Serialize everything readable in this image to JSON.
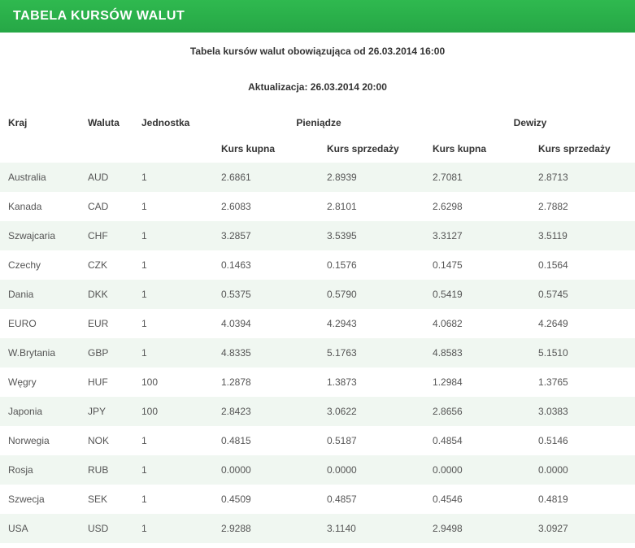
{
  "header": {
    "title": "TABELA KURSÓW WALUT"
  },
  "subtitle": "Tabela kursów walut obowiązująca od 26.03.2014 16:00",
  "update_line": "Aktualizacja: 26.03.2014 20:00",
  "colors": {
    "header_gradient_top": "#2fb94f",
    "header_gradient_bottom": "#26a746",
    "header_text": "#ffffff",
    "row_odd_bg": "#f0f7f1",
    "row_even_bg": "#ffffff",
    "text_primary": "#333333",
    "text_cell": "#555555"
  },
  "table": {
    "columns": {
      "kraj": "Kraj",
      "waluta": "Waluta",
      "jednostka": "Jednostka",
      "pieniadze": "Pieniądze",
      "dewizy": "Dewizy",
      "kurs_kupna": "Kurs kupna",
      "kurs_sprzedazy": "Kurs sprzedaży"
    },
    "rows": [
      {
        "kraj": "Australia",
        "waluta": "AUD",
        "jednostka": "1",
        "p_kupna": "2.6861",
        "p_sprz": "2.8939",
        "d_kupna": "2.7081",
        "d_sprz": "2.8713"
      },
      {
        "kraj": "Kanada",
        "waluta": "CAD",
        "jednostka": "1",
        "p_kupna": "2.6083",
        "p_sprz": "2.8101",
        "d_kupna": "2.6298",
        "d_sprz": "2.7882"
      },
      {
        "kraj": "Szwajcaria",
        "waluta": "CHF",
        "jednostka": "1",
        "p_kupna": "3.2857",
        "p_sprz": "3.5395",
        "d_kupna": "3.3127",
        "d_sprz": "3.5119"
      },
      {
        "kraj": "Czechy",
        "waluta": "CZK",
        "jednostka": "1",
        "p_kupna": "0.1463",
        "p_sprz": "0.1576",
        "d_kupna": "0.1475",
        "d_sprz": "0.1564"
      },
      {
        "kraj": "Dania",
        "waluta": "DKK",
        "jednostka": "1",
        "p_kupna": "0.5375",
        "p_sprz": "0.5790",
        "d_kupna": "0.5419",
        "d_sprz": "0.5745"
      },
      {
        "kraj": "EURO",
        "waluta": "EUR",
        "jednostka": "1",
        "p_kupna": "4.0394",
        "p_sprz": "4.2943",
        "d_kupna": "4.0682",
        "d_sprz": "4.2649"
      },
      {
        "kraj": "W.Brytania",
        "waluta": "GBP",
        "jednostka": "1",
        "p_kupna": "4.8335",
        "p_sprz": "5.1763",
        "d_kupna": "4.8583",
        "d_sprz": "5.1510"
      },
      {
        "kraj": "Węgry",
        "waluta": "HUF",
        "jednostka": "100",
        "p_kupna": "1.2878",
        "p_sprz": "1.3873",
        "d_kupna": "1.2984",
        "d_sprz": "1.3765"
      },
      {
        "kraj": "Japonia",
        "waluta": "JPY",
        "jednostka": "100",
        "p_kupna": "2.8423",
        "p_sprz": "3.0622",
        "d_kupna": "2.8656",
        "d_sprz": "3.0383"
      },
      {
        "kraj": "Norwegia",
        "waluta": "NOK",
        "jednostka": "1",
        "p_kupna": "0.4815",
        "p_sprz": "0.5187",
        "d_kupna": "0.4854",
        "d_sprz": "0.5146"
      },
      {
        "kraj": "Rosja",
        "waluta": "RUB",
        "jednostka": "1",
        "p_kupna": "0.0000",
        "p_sprz": "0.0000",
        "d_kupna": "0.0000",
        "d_sprz": "0.0000"
      },
      {
        "kraj": "Szwecja",
        "waluta": "SEK",
        "jednostka": "1",
        "p_kupna": "0.4509",
        "p_sprz": "0.4857",
        "d_kupna": "0.4546",
        "d_sprz": "0.4819"
      },
      {
        "kraj": "USA",
        "waluta": "USD",
        "jednostka": "1",
        "p_kupna": "2.9288",
        "p_sprz": "3.1140",
        "d_kupna": "2.9498",
        "d_sprz": "3.0927"
      }
    ]
  }
}
